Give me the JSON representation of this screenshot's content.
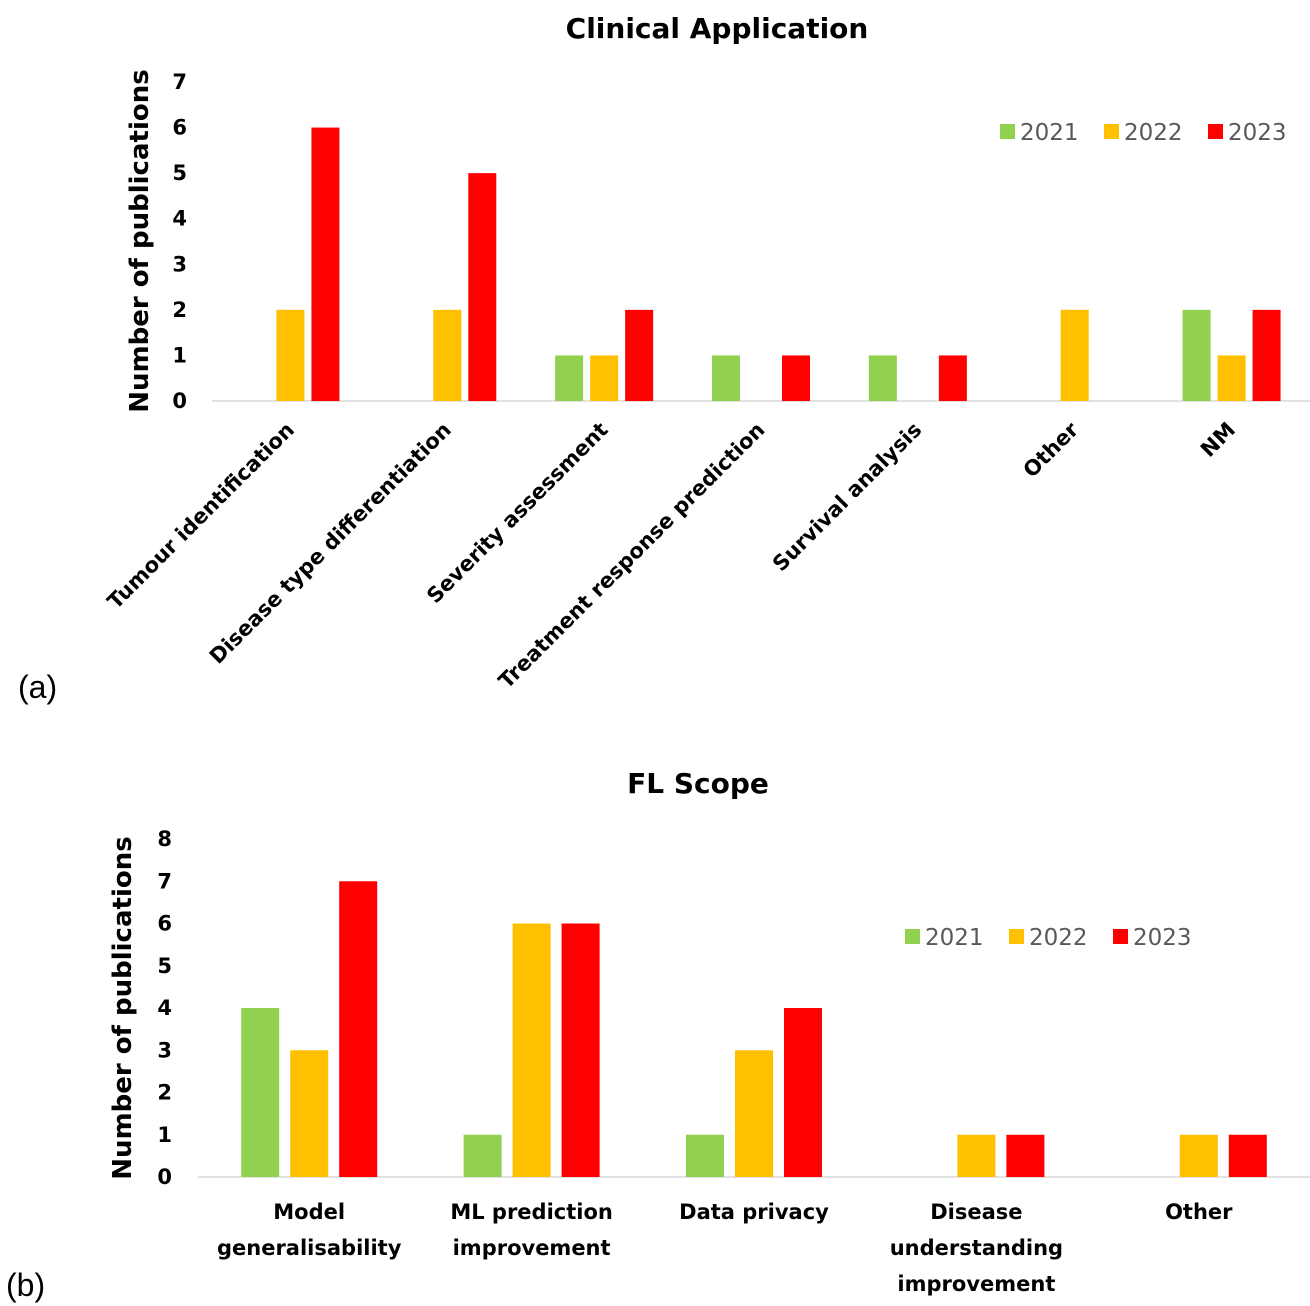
{
  "colors": {
    "2021": "#92d050",
    "2022": "#ffc000",
    "2023": "#ff0000",
    "axis": "#d9d9d9"
  },
  "chart_data": [
    {
      "type": "bar",
      "panel_label": "(a)",
      "title": "Clinical Application",
      "ylabel": "Number of publications",
      "xlabel": "",
      "ylim": [
        0,
        7
      ],
      "yticks": [
        "0",
        "1",
        "2",
        "3",
        "4",
        "5",
        "6",
        "7"
      ],
      "legend_position": "top-right",
      "categories": [
        "Tumour identification",
        "Disease type differentiation",
        "Severity assessment",
        "Treatment response prediction",
        "Survival analysis",
        "Other",
        "NM"
      ],
      "series": [
        {
          "name": "2021",
          "values": [
            0,
            0,
            1,
            1,
            1,
            0,
            2
          ]
        },
        {
          "name": "2022",
          "values": [
            2,
            2,
            1,
            0,
            0,
            2,
            1
          ]
        },
        {
          "name": "2023",
          "values": [
            6,
            5,
            2,
            1,
            1,
            0,
            2
          ]
        }
      ]
    },
    {
      "type": "bar",
      "panel_label": "(b)",
      "title": "FL Scope",
      "ylabel": "Number of publications",
      "xlabel": "",
      "ylim": [
        0,
        8
      ],
      "yticks": [
        "0",
        "1",
        "2",
        "3",
        "4",
        "5",
        "6",
        "7",
        "8"
      ],
      "legend_position": "top-right",
      "categories": [
        [
          "Model",
          "generalisability"
        ],
        [
          "ML prediction",
          "improvement"
        ],
        [
          "Data privacy"
        ],
        [
          "Disease",
          "understanding",
          "improvement"
        ],
        [
          "Other"
        ]
      ],
      "series": [
        {
          "name": "2021",
          "values": [
            4,
            1,
            1,
            0,
            0
          ]
        },
        {
          "name": "2022",
          "values": [
            3,
            6,
            3,
            1,
            1
          ]
        },
        {
          "name": "2023",
          "values": [
            7,
            6,
            4,
            1,
            1
          ]
        }
      ]
    }
  ]
}
